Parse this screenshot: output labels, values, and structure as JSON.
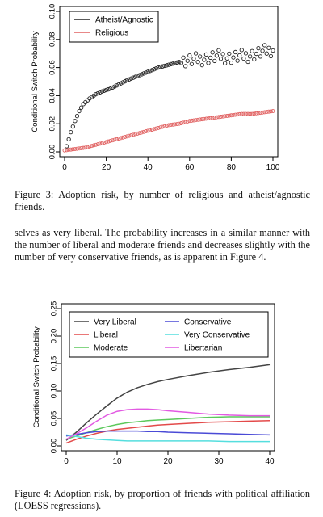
{
  "figure3": {
    "caption_label": "Figure 3:",
    "caption_text": "Adoption risk, by number of religious and atheist/agnostic friends.",
    "ylabel": "Conditional Switch Probability",
    "xticks": [
      "0",
      "20",
      "40",
      "60",
      "80",
      "100"
    ],
    "yticks": [
      "0.00",
      "0.02",
      "0.04",
      "0.06",
      "0.08",
      "0.10"
    ],
    "legend": [
      "Atheist/Agnostic",
      "Religious"
    ],
    "colors": {
      "atheist": "#222222",
      "religious": "#e06060"
    }
  },
  "body_text": "selves as very liberal. The probability increases in a similar manner with the number of liberal and moderate friends and decreases slightly with the number of very conservative friends, as is apparent in Figure 4.",
  "figure4": {
    "caption_label": "Figure 4:",
    "caption_text": "Adoption risk, by proportion of friends with political affiliation (LOESS regressions).",
    "ylabel": "Conditional Switch Probability",
    "xticks": [
      "0",
      "10",
      "20",
      "30",
      "40"
    ],
    "yticks": [
      "0.00",
      "0.05",
      "0.10",
      "0.15",
      "0.20",
      "0.25"
    ],
    "legend": [
      "Very Liberal",
      "Liberal",
      "Moderate",
      "Conservative",
      "Very Conservative",
      "Libertarian"
    ],
    "colors": [
      "#444444",
      "#e34a4a",
      "#5cc95c",
      "#4a4ad6",
      "#55dede",
      "#e25ae2"
    ]
  },
  "chart_data": [
    {
      "type": "scatter",
      "ylabel": "Conditional Switch Probability",
      "xlim": [
        0,
        100
      ],
      "ylim": [
        0,
        0.1
      ],
      "legend_position": "top-left",
      "series": [
        {
          "name": "Atheist/Agnostic",
          "x": [
            1,
            3,
            5,
            7,
            9,
            12,
            15,
            18,
            22,
            26,
            30,
            35,
            40,
            45,
            50,
            55,
            60,
            65,
            70,
            75,
            80,
            85,
            90,
            95,
            100
          ],
          "y": [
            0.004,
            0.014,
            0.022,
            0.029,
            0.034,
            0.038,
            0.041,
            0.043,
            0.045,
            0.048,
            0.051,
            0.054,
            0.057,
            0.06,
            0.062,
            0.064,
            0.065,
            0.066,
            0.067,
            0.068,
            0.067,
            0.068,
            0.069,
            0.071,
            0.073
          ]
        },
        {
          "name": "Religious",
          "x": [
            0,
            5,
            10,
            15,
            20,
            25,
            30,
            35,
            40,
            45,
            50,
            55,
            60,
            65,
            70,
            75,
            80,
            85,
            90,
            95,
            100
          ],
          "y": [
            0.001,
            0.002,
            0.003,
            0.005,
            0.007,
            0.009,
            0.011,
            0.013,
            0.015,
            0.017,
            0.019,
            0.02,
            0.022,
            0.023,
            0.024,
            0.025,
            0.026,
            0.027,
            0.027,
            0.028,
            0.029
          ]
        }
      ]
    },
    {
      "type": "line",
      "ylabel": "Conditional Switch Probability",
      "xlim": [
        0,
        40
      ],
      "ylim": [
        0,
        0.25
      ],
      "legend_position": "top",
      "x": [
        0,
        2,
        4,
        6,
        8,
        10,
        12,
        14,
        16,
        18,
        20,
        24,
        28,
        32,
        36,
        40
      ],
      "series": [
        {
          "name": "Very Liberal",
          "values": [
            0.01,
            0.025,
            0.042,
            0.058,
            0.073,
            0.087,
            0.098,
            0.106,
            0.112,
            0.117,
            0.121,
            0.128,
            0.134,
            0.139,
            0.143,
            0.148
          ]
        },
        {
          "name": "Liberal",
          "values": [
            0.005,
            0.012,
            0.018,
            0.023,
            0.027,
            0.03,
            0.032,
            0.034,
            0.036,
            0.038,
            0.039,
            0.041,
            0.043,
            0.044,
            0.045,
            0.046
          ]
        },
        {
          "name": "Moderate",
          "values": [
            0.012,
            0.018,
            0.024,
            0.03,
            0.035,
            0.039,
            0.042,
            0.044,
            0.046,
            0.047,
            0.048,
            0.05,
            0.052,
            0.053,
            0.053,
            0.053
          ]
        },
        {
          "name": "Conservative",
          "values": [
            0.018,
            0.021,
            0.024,
            0.026,
            0.027,
            0.027,
            0.027,
            0.027,
            0.026,
            0.026,
            0.025,
            0.024,
            0.023,
            0.022,
            0.021,
            0.02
          ]
        },
        {
          "name": "Very Conservative",
          "values": [
            0.02,
            0.017,
            0.014,
            0.012,
            0.011,
            0.01,
            0.009,
            0.009,
            0.009,
            0.009,
            0.009,
            0.009,
            0.009,
            0.008,
            0.008,
            0.008
          ]
        },
        {
          "name": "Libertarian",
          "values": [
            0.012,
            0.022,
            0.033,
            0.045,
            0.056,
            0.063,
            0.066,
            0.067,
            0.067,
            0.066,
            0.064,
            0.061,
            0.058,
            0.056,
            0.055,
            0.055
          ]
        }
      ]
    }
  ]
}
